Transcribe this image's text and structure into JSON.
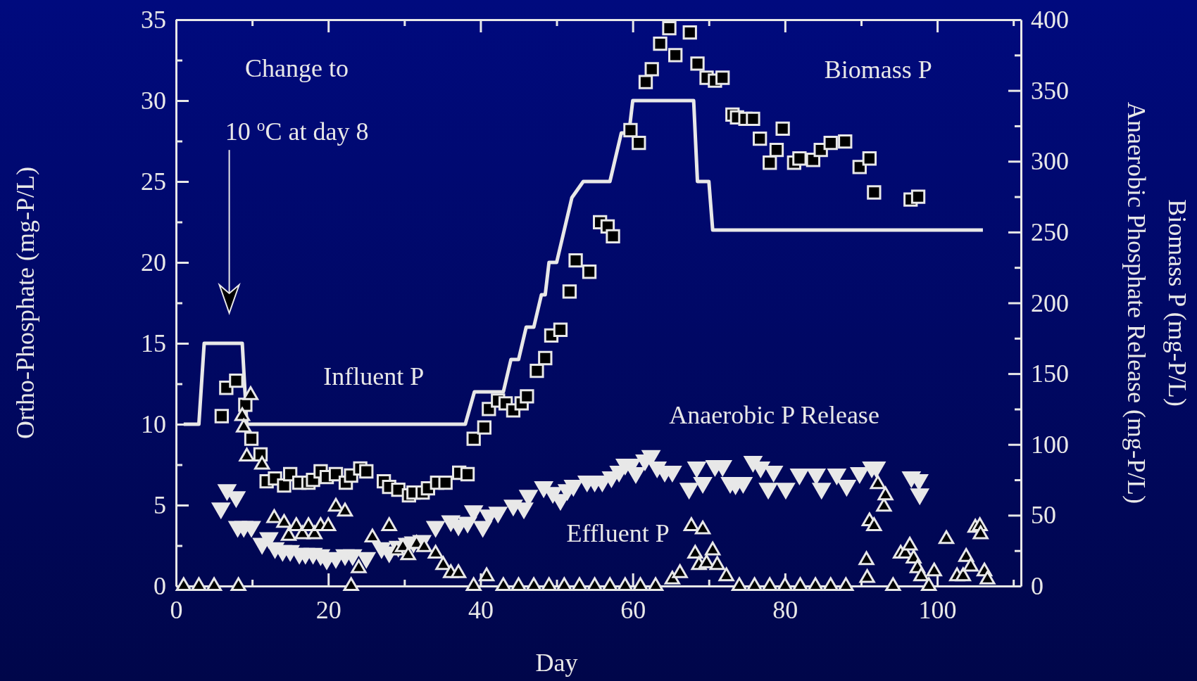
{
  "chart_data": {
    "type": "scatter",
    "xlabel": "Day",
    "ylabel": "Ortho-Phosphate (mg-P/L)",
    "y2label": [
      "Biomass P (mg-P/L)",
      "Anaerobic Phosphate Release (mg-P/L)"
    ],
    "xlim": [
      0,
      111
    ],
    "xticks": [
      0,
      {
        "value": 10,
        "label": null
      },
      20,
      {
        "value": 30,
        "label": null
      },
      40,
      {
        "value": 50,
        "label": null
      },
      60,
      {
        "value": 70,
        "label": null
      },
      80,
      {
        "value": 90,
        "label": null
      },
      100,
      {
        "value": 110,
        "label": null
      }
    ],
    "ylim": [
      0,
      35
    ],
    "yticks": [
      0,
      {
        "value": 2.5,
        "label": null
      },
      5,
      {
        "value": 7.5,
        "label": null
      },
      10,
      {
        "value": 12.5,
        "label": null
      },
      15,
      {
        "value": 17.5,
        "label": null
      },
      20,
      {
        "value": 22.5,
        "label": null
      },
      25,
      {
        "value": 27.5,
        "label": null
      },
      30,
      {
        "value": 32.5,
        "label": null
      },
      35
    ],
    "y2lim": [
      0,
      400
    ],
    "y2ticks": [
      0,
      {
        "value": 25,
        "label": null
      },
      50,
      {
        "value": 75,
        "label": null
      },
      100,
      {
        "value": 125,
        "label": null
      },
      150,
      {
        "value": 175,
        "label": null
      },
      200,
      {
        "value": 225,
        "label": null
      },
      250,
      {
        "value": 275,
        "label": null
      },
      300,
      {
        "value": 325,
        "label": null
      },
      350,
      {
        "value": 375,
        "label": null
      },
      400
    ],
    "grid": false,
    "annotations": [
      "Change to",
      "10 $^{o}$C at day 8",
      "Biomass P"
    ],
    "series": [
      {
        "name": "Influent P",
        "type": "line",
        "color": "#e8e8e8",
        "line_style": "solid",
        "x": [
          1,
          3,
          3.7,
          8.7,
          9.3,
          38,
          39.2,
          43,
          44,
          45,
          46,
          47,
          48,
          48.5,
          49,
          50,
          51,
          52,
          53.5,
          57,
          58.5,
          59.5,
          60,
          68,
          68.5,
          70,
          70.5,
          106
        ],
        "values": [
          10,
          10,
          15,
          15,
          10,
          10,
          12,
          12,
          14,
          14,
          16,
          16,
          18,
          18,
          20,
          20,
          22,
          24,
          25,
          25,
          28,
          28,
          30,
          30,
          25,
          25,
          22,
          22
        ]
      },
      {
        "axis": "y2",
        "marker": "square",
        "color": "#e8e8e8",
        "x": [
          6.0,
          6.6,
          7.9,
          9.1,
          9.9,
          11.1,
          11.9,
          13.0,
          14.2,
          15.0,
          16.2,
          17.4,
          18.0,
          19.0,
          19.8,
          21.0,
          22.3,
          23.0,
          24.2,
          25.0,
          27.3,
          28.0,
          29.2,
          30.6,
          31.2,
          32.4,
          33.1,
          34.3,
          35.4,
          37.2,
          38.3,
          39.1,
          40.5,
          41.1,
          42.3,
          43.3,
          44.3,
          45.4,
          46.1,
          47.4,
          48.5,
          49.3,
          50.5,
          51.7,
          52.5,
          54.3,
          55.7,
          56.7,
          57.4,
          59.7,
          60.8,
          61.7,
          62.5,
          63.6,
          64.8,
          65.6,
          67.5,
          68.5,
          69.7,
          70.8,
          71.8,
          73.1,
          73.7,
          74.8,
          75.8,
          76.7,
          78.0,
          78.9,
          79.7,
          81.2,
          81.9,
          83.7,
          84.7,
          86.0,
          87.9,
          89.8,
          91.1,
          91.7,
          96.5,
          97.5
        ],
        "values": [
          120,
          140,
          145,
          128,
          104,
          93,
          74,
          76,
          71,
          79,
          73,
          73,
          75,
          81,
          77,
          79,
          73,
          78,
          83,
          81,
          74,
          70,
          68,
          64,
          66,
          66,
          69,
          73,
          73,
          80,
          79,
          104,
          112,
          125,
          131,
          129,
          124,
          129,
          134,
          152,
          161,
          177,
          181,
          208,
          230,
          222,
          257,
          254,
          247,
          322,
          313,
          356,
          365,
          383,
          394,
          375,
          391,
          369,
          359,
          357,
          359,
          333,
          331,
          330,
          330,
          316,
          299,
          308,
          323,
          299,
          302,
          301,
          308,
          313,
          314,
          296,
          302,
          278,
          273,
          275
        ]
      },
      {
        "name": "Anaerobic P Release",
        "axis": "y2",
        "marker": "triangle-down",
        "color": "#e8e8e8",
        "x": [
          5.9,
          6.7,
          7.9,
          8.1,
          8.9,
          9.9,
          11.3,
          12.2,
          13.0,
          14.0,
          15.0,
          16.2,
          17.0,
          18.0,
          19.0,
          19.8,
          21.0,
          22.2,
          23.2,
          25.0,
          27.0,
          28.0,
          29.2,
          30.4,
          31.2,
          32.3,
          34.1,
          36.1,
          37.1,
          38.3,
          39.1,
          40.3,
          41.1,
          42.3,
          44.3,
          45.7,
          46.3,
          48.3,
          49.5,
          50.5,
          51.4,
          52.2,
          54.0,
          55.0,
          56.0,
          57.2,
          58.2,
          59.0,
          59.8,
          60.4,
          61.6,
          62.4,
          63.2,
          64.2,
          65.2,
          67.4,
          68.4,
          69.2,
          70.8,
          71.8,
          72.8,
          73.5,
          74.5,
          75.8,
          76.8,
          77.8,
          78.5,
          80.1,
          81.9,
          84.1,
          84.8,
          86.8,
          88.1,
          89.8,
          91.4,
          92.0,
          96.6,
          97.6,
          97.7
        ],
        "values": [
          55,
          68,
          63,
          42,
          42,
          42,
          30,
          34,
          27,
          25,
          25,
          23,
          23,
          23,
          22,
          19,
          20,
          22,
          22,
          20,
          27,
          24,
          28,
          30,
          31,
          32,
          42,
          46,
          43,
          45,
          53,
          42,
          50,
          52,
          57,
          55,
          64,
          70,
          66,
          61,
          68,
          71,
          74,
          74,
          74,
          77,
          81,
          86,
          86,
          80,
          89,
          92,
          84,
          81,
          81,
          69,
          84,
          73,
          85,
          85,
          73,
          72,
          73,
          88,
          84,
          69,
          81,
          69,
          79,
          79,
          69,
          79,
          71,
          80,
          84,
          84,
          77,
          75,
          65
        ]
      },
      {
        "name": "Effluent P",
        "marker": "triangle",
        "color": "#e8e8e8",
        "x": [
          1,
          3,
          5,
          8.2,
          8.7,
          8.9,
          9.3,
          9.8,
          11.3,
          12.9,
          14.2,
          14.8,
          15.8,
          16.6,
          17.4,
          18.2,
          19.0,
          20.0,
          21.0,
          22.2,
          23.0,
          24.0,
          25.8,
          28.0,
          29.0,
          29.8,
          30.5,
          31.6,
          32.6,
          34.1,
          35.1,
          36.1,
          37.1,
          39.1,
          40.8,
          43,
          45,
          47,
          49,
          51,
          53,
          55,
          57,
          59,
          61,
          63,
          65.2,
          66.2,
          67.7,
          68.2,
          68.7,
          69.2,
          69.7,
          70.5,
          71.1,
          72.3,
          74,
          76,
          78,
          80,
          82,
          84,
          86,
          88,
          90.7,
          90.8,
          91.1,
          91.7,
          92.2,
          93.0,
          93.2,
          94.2,
          95.2,
          95.8,
          96.4,
          96.9,
          97.4,
          97.9,
          98.9,
          99.6,
          101.2,
          102.6,
          103.4,
          103.8,
          104.4,
          105.0,
          105.6,
          105.7,
          106.2,
          106.6
        ],
        "values": [
          0,
          0,
          0,
          0,
          10.5,
          9.8,
          8.0,
          11.8,
          7.5,
          4.2,
          3.9,
          3.1,
          3.7,
          3.2,
          3.7,
          3.2,
          3.7,
          3.7,
          4.9,
          4.6,
          0,
          1.1,
          3.0,
          3.7,
          2.2,
          2.4,
          1.9,
          2.6,
          2.4,
          2.0,
          1.3,
          0.8,
          0.8,
          0,
          0.6,
          0,
          0,
          0,
          0,
          0,
          0,
          0,
          0,
          0,
          0,
          0,
          0.4,
          0.8,
          3.7,
          2.0,
          1.3,
          3.5,
          1.4,
          2.2,
          1.3,
          0.6,
          0,
          0,
          0,
          0,
          0,
          0,
          0,
          0,
          1.6,
          0.5,
          4.0,
          3.7,
          6.3,
          4.9,
          5.6,
          0,
          2.0,
          2.0,
          2.5,
          1.7,
          1.1,
          0.6,
          0,
          0.9,
          2.9,
          0.6,
          0.6,
          1.8,
          1.2,
          3.6,
          3.7,
          3.2,
          0.9,
          0.4
        ]
      }
    ]
  }
}
